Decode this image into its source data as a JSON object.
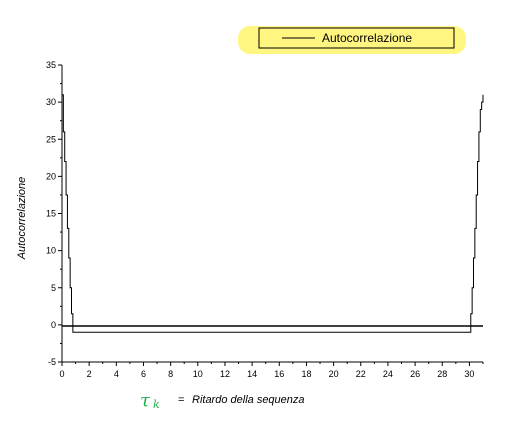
{
  "chart_data": {
    "type": "line",
    "xlabel": "Ritardo della sequenza",
    "ylabel": "Autocorrelazione",
    "xlim": [
      0,
      31
    ],
    "ylim": [
      -5,
      35
    ],
    "xticks": [
      0,
      2,
      4,
      6,
      8,
      10,
      12,
      14,
      16,
      18,
      20,
      22,
      24,
      26,
      28,
      30
    ],
    "yticks": [
      -5,
      0,
      5,
      10,
      15,
      20,
      25,
      30,
      35
    ],
    "legend": {
      "position": "top-right",
      "highlighted": true
    },
    "series": [
      {
        "name": "Autocorrelazione",
        "color": "#000000",
        "step": true,
        "x": [
          0,
          0.1,
          0.2,
          0.3,
          0.4,
          0.5,
          0.6,
          0.7,
          0.8,
          0.9,
          1,
          30,
          30.1,
          30.2,
          30.3,
          30.4,
          30.5,
          30.6,
          30.7,
          30.8,
          30.9,
          31
        ],
        "y": [
          31,
          26,
          22,
          17.5,
          13,
          9,
          5,
          1.5,
          -1,
          -1,
          -1,
          -1,
          1.5,
          5,
          9,
          13,
          17.5,
          22,
          26,
          29,
          30,
          31
        ]
      }
    ]
  },
  "annotation": {
    "tau_symbol": "τ",
    "tau_subscript": "k",
    "equals": "="
  },
  "colors": {
    "highlight": "#fff36b",
    "handwriting": "#22b04a",
    "line": "#000000"
  }
}
